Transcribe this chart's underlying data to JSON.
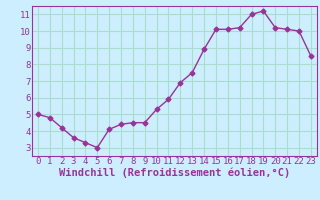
{
  "x": [
    0,
    1,
    2,
    3,
    4,
    5,
    6,
    7,
    8,
    9,
    10,
    11,
    12,
    13,
    14,
    15,
    16,
    17,
    18,
    19,
    20,
    21,
    22,
    23
  ],
  "y": [
    5.0,
    4.8,
    4.2,
    3.6,
    3.3,
    3.0,
    4.1,
    4.4,
    4.5,
    4.5,
    5.3,
    5.9,
    6.9,
    7.5,
    8.9,
    10.1,
    10.1,
    10.2,
    11.0,
    11.2,
    10.2,
    10.1,
    10.0,
    8.5
  ],
  "xlabel": "Windchill (Refroidissement éolien,°C)",
  "xlim": [
    -0.5,
    23.5
  ],
  "ylim": [
    2.5,
    11.5
  ],
  "yticks": [
    3,
    4,
    5,
    6,
    7,
    8,
    9,
    10,
    11
  ],
  "xticks": [
    0,
    1,
    2,
    3,
    4,
    5,
    6,
    7,
    8,
    9,
    10,
    11,
    12,
    13,
    14,
    15,
    16,
    17,
    18,
    19,
    20,
    21,
    22,
    23
  ],
  "line_color": "#993399",
  "marker": "D",
  "marker_size": 2.5,
  "bg_color": "#cceeff",
  "grid_color": "#aaddcc",
  "tick_label_fontsize": 6.5,
  "xlabel_fontsize": 7.5
}
